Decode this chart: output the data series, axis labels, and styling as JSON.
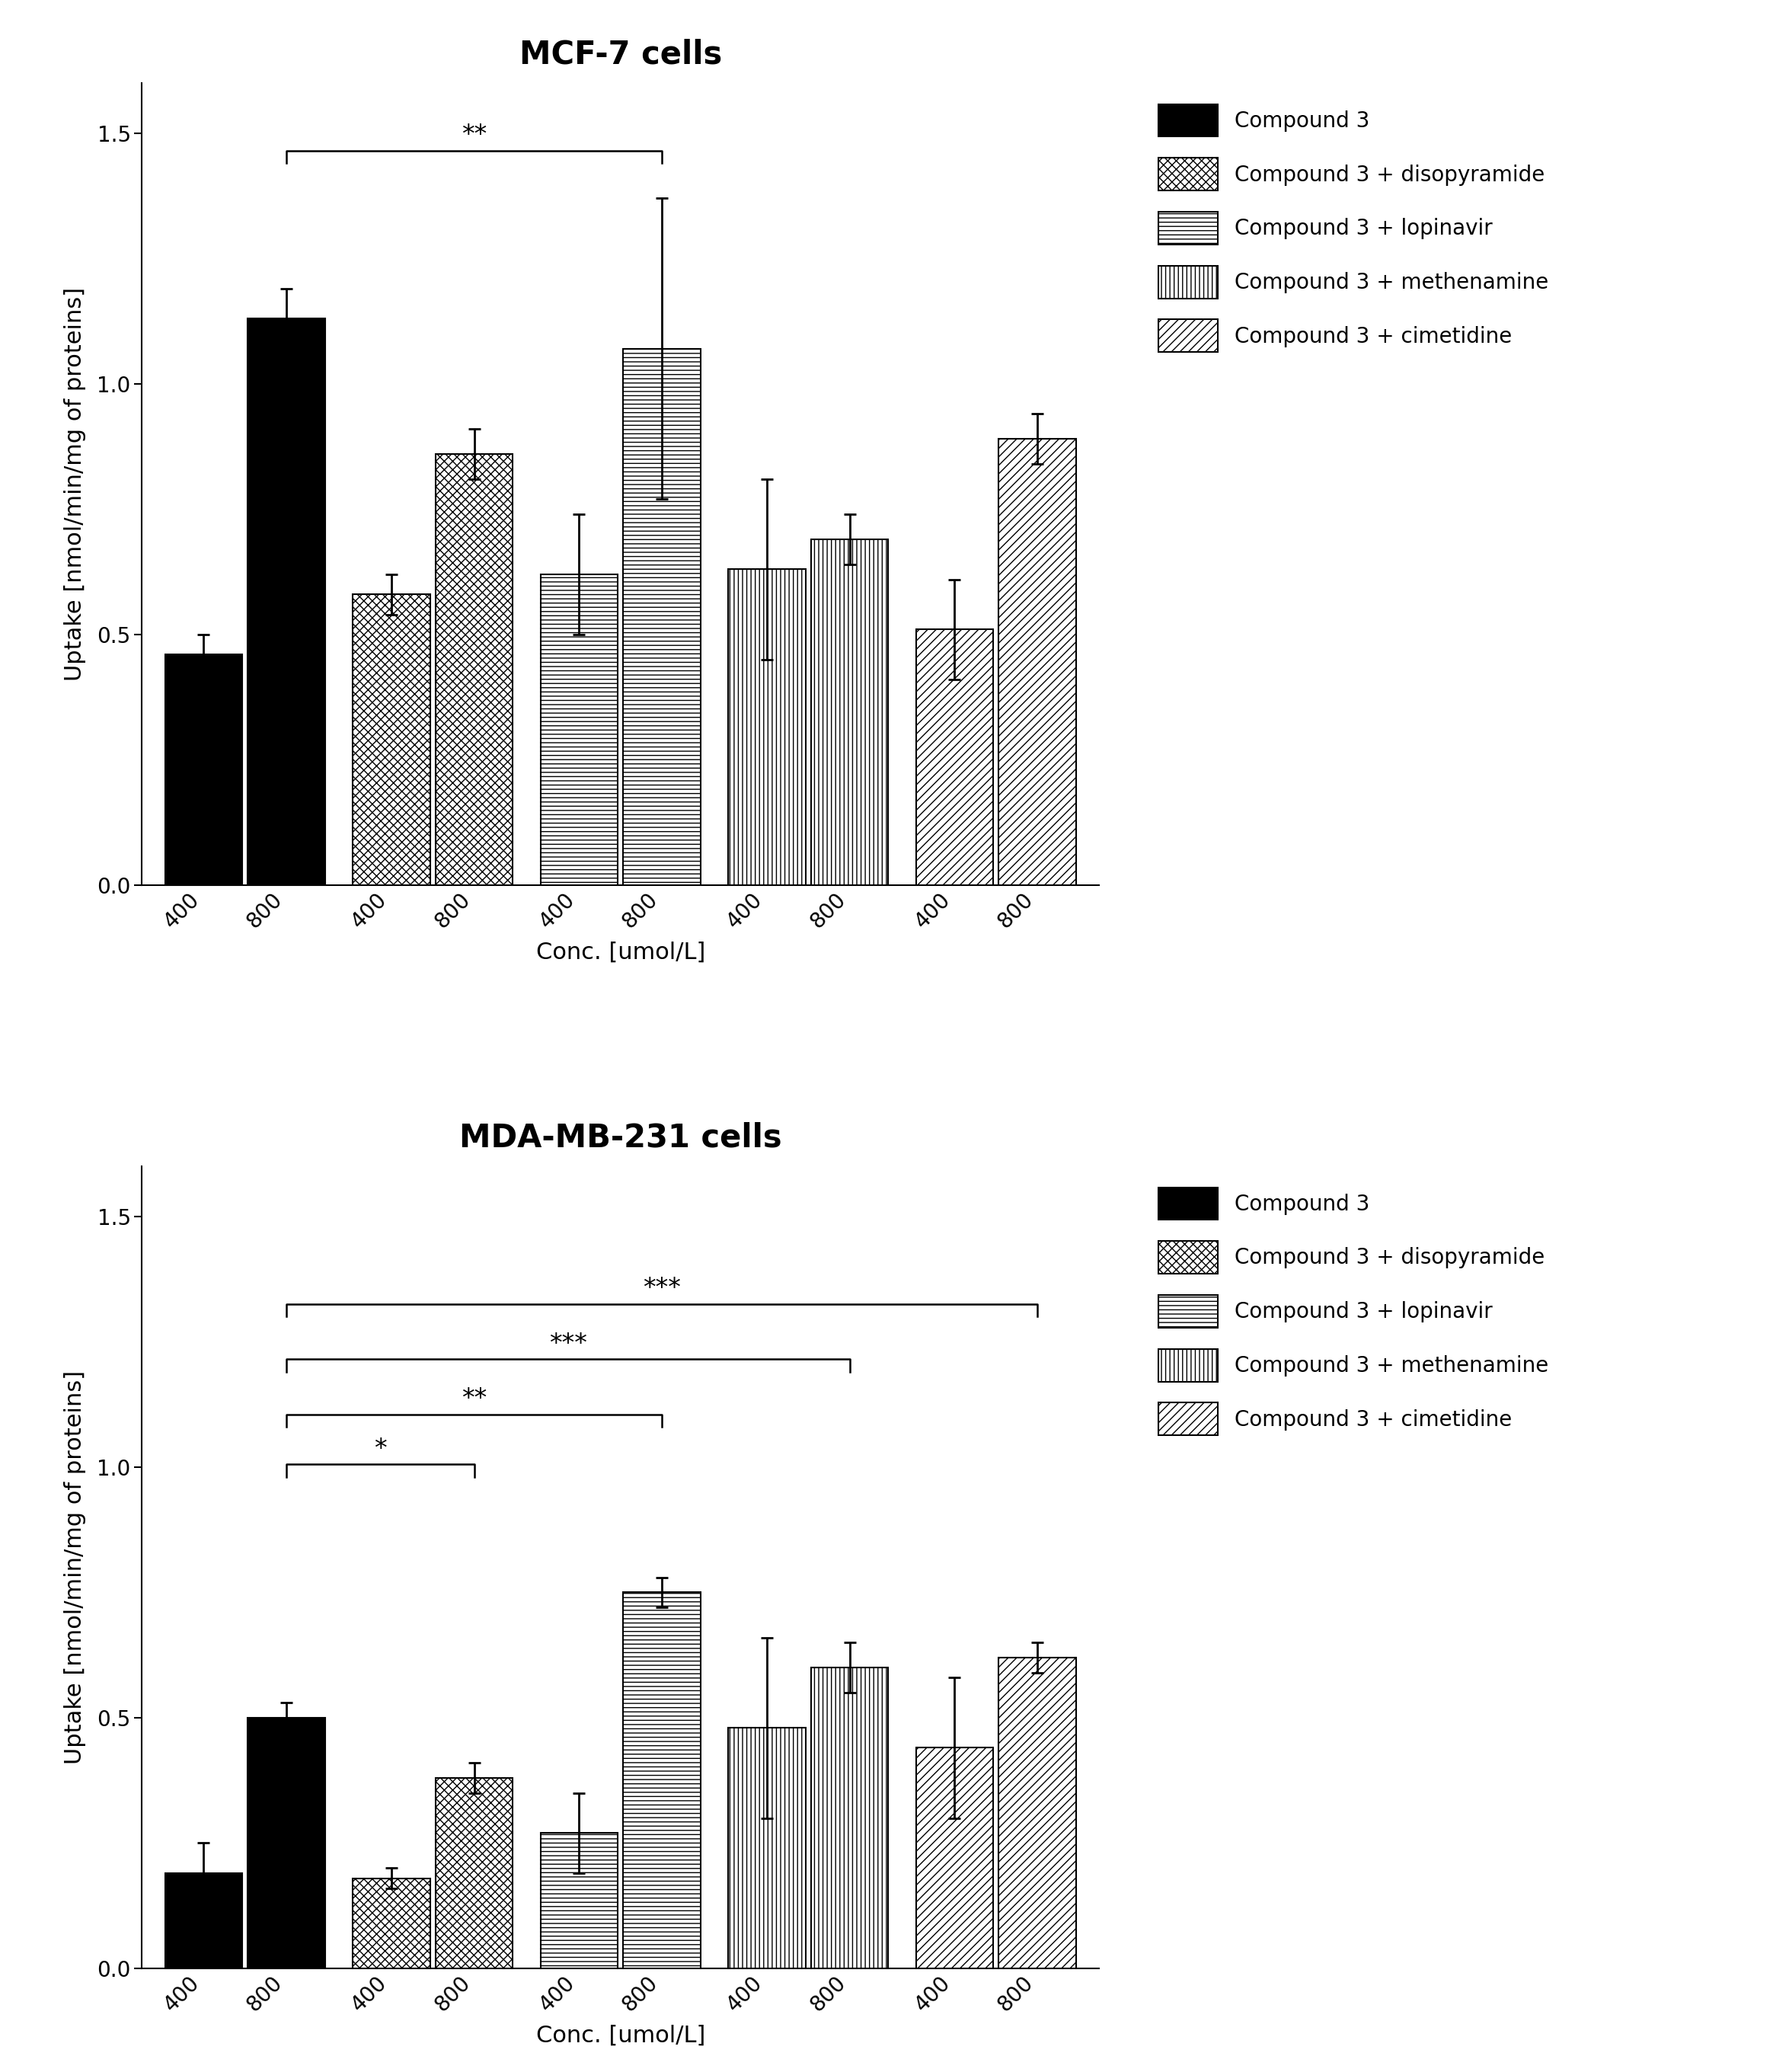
{
  "title1": "MCF-7 cells",
  "title2": "MDA-MB-231 cells",
  "ylabel": "Uptake [nmol/min/mg of proteins]",
  "xlabel": "Conc. [umol/L]",
  "ylim": [
    0,
    1.6
  ],
  "yticks": [
    0.0,
    0.5,
    1.0,
    1.5
  ],
  "groups": [
    "Compound 3",
    "Compound 3 + disopyramide",
    "Compound 3 + lopinavir",
    "Compound 3 + methenamine",
    "Compound 3 + cimetidine"
  ],
  "conc_labels": [
    "400",
    "800",
    "400",
    "800",
    "400",
    "800",
    "400",
    "800",
    "400",
    "800"
  ],
  "mcf7_values": [
    0.46,
    1.13,
    0.58,
    0.86,
    0.62,
    1.07,
    0.63,
    0.69,
    0.51,
    0.89
  ],
  "mcf7_errors": [
    0.04,
    0.06,
    0.04,
    0.05,
    0.12,
    0.3,
    0.18,
    0.05,
    0.1,
    0.05
  ],
  "mda_values": [
    0.19,
    0.5,
    0.18,
    0.38,
    0.27,
    0.75,
    0.48,
    0.6,
    0.44,
    0.62
  ],
  "mda_errors": [
    0.06,
    0.03,
    0.02,
    0.03,
    0.08,
    0.03,
    0.18,
    0.05,
    0.14,
    0.03
  ],
  "hatch_patterns": [
    "",
    "xx",
    "--",
    "||",
    "//"
  ],
  "bar_facecolors": [
    "black",
    "white",
    "white",
    "white",
    "white"
  ],
  "bar_edgecolors": [
    "black",
    "black",
    "black",
    "black",
    "black"
  ],
  "background_color": "white",
  "fontsize_title": 30,
  "fontsize_labels": 22,
  "fontsize_ticks": 20,
  "fontsize_legend": 20,
  "fontsize_sig": 24
}
